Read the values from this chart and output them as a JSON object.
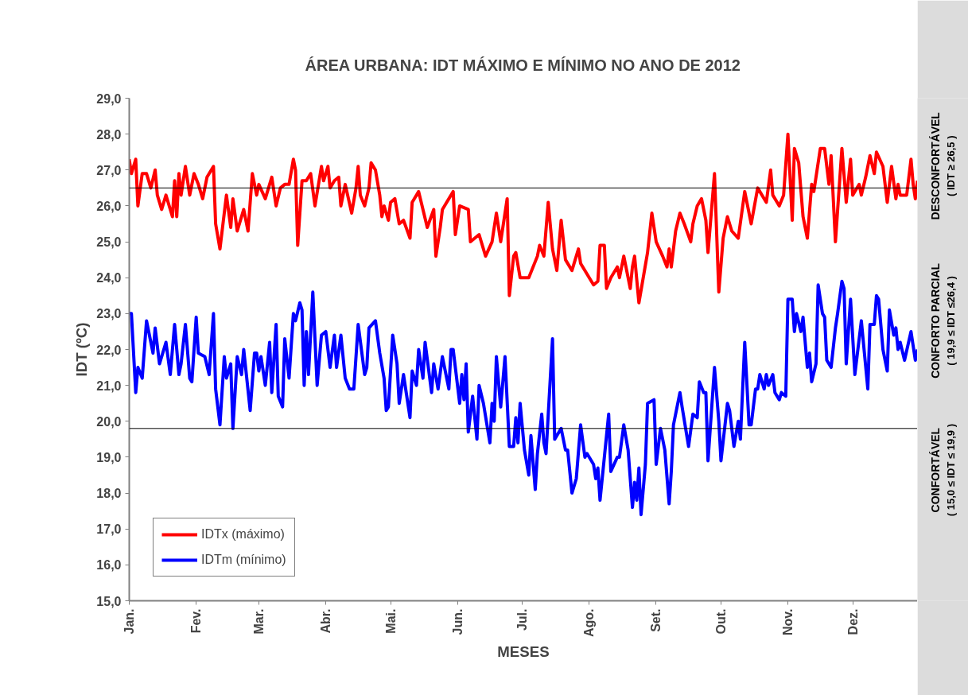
{
  "chart_data": {
    "type": "line",
    "title": "ÁREA URBANA: IDT MÁXIMO E MÍNIMO NO ANO DE 2012",
    "xlabel": "MESES",
    "ylabel": "IDT (ºC)",
    "xlim": [
      "2012-01-01",
      "2012-12-31"
    ],
    "xticks": [
      {
        "value": "2012-01-01",
        "label": "Jan."
      },
      {
        "value": "2012-02-01",
        "label": "Fev."
      },
      {
        "value": "2012-03-01",
        "label": "Mar."
      },
      {
        "value": "2012-04-01",
        "label": "Abr."
      },
      {
        "value": "2012-05-01",
        "label": "Mai."
      },
      {
        "value": "2012-06-01",
        "label": "Jun."
      },
      {
        "value": "2012-07-01",
        "label": "Jul."
      },
      {
        "value": "2012-08-01",
        "label": "Ago."
      },
      {
        "value": "2012-09-01",
        "label": "Set."
      },
      {
        "value": "2012-10-01",
        "label": "Out."
      },
      {
        "value": "2012-11-01",
        "label": "Nov."
      },
      {
        "value": "2012-12-01",
        "label": "Dez."
      }
    ],
    "ylim": [
      15,
      29
    ],
    "yticks": [
      {
        "value": 15,
        "label": "15,0"
      },
      {
        "value": 16,
        "label": "16,0"
      },
      {
        "value": 17,
        "label": "17,0"
      },
      {
        "value": 18,
        "label": "18,0"
      },
      {
        "value": 19,
        "label": "19,0"
      },
      {
        "value": 20,
        "label": "20,0"
      },
      {
        "value": 21,
        "label": "21,0"
      },
      {
        "value": 22,
        "label": "22,0"
      },
      {
        "value": 23,
        "label": "23,0"
      },
      {
        "value": 24,
        "label": "24,0"
      },
      {
        "value": 25,
        "label": "25,0"
      },
      {
        "value": 26,
        "label": "26,0"
      },
      {
        "value": 27,
        "label": "27,0"
      },
      {
        "value": 28,
        "label": "28,0"
      },
      {
        "value": 29,
        "label": "29,0"
      }
    ],
    "grid": false,
    "legend": "bottom left",
    "marker": "none",
    "line_style": "solid",
    "ref_lines": [
      {
        "axis": "y",
        "value": 26.5,
        "color": "#000000"
      },
      {
        "axis": "y",
        "value": 19.8,
        "color": "#000000"
      }
    ],
    "annotations": [
      "DESCONFORTÁVEL\n( IDT ≥ 26,5 )",
      "CONFORTO PARCIAL\n( 19,9 ≤ IDT ≤26,4 )",
      "CONFORTÁVEL\n( 15,0 ≤ IDT ≤ 19,9 )"
    ],
    "series": [
      {
        "name": "IDTx (máximo)",
        "color": "#ff0000",
        "x": [
          "2012-01-01",
          "2012-01-02",
          "2012-01-04",
          "2012-01-05",
          "2012-01-07",
          "2012-01-09",
          "2012-01-11",
          "2012-01-13",
          "2012-01-14",
          "2012-01-16",
          "2012-01-18",
          "2012-01-21",
          "2012-01-22",
          "2012-01-23",
          "2012-01-24",
          "2012-01-25",
          "2012-01-27",
          "2012-01-29",
          "2012-01-31",
          "2012-02-02",
          "2012-02-04",
          "2012-02-06",
          "2012-02-09",
          "2012-02-10",
          "2012-02-12",
          "2012-02-15",
          "2012-02-17",
          "2012-02-18",
          "2012-02-20",
          "2012-02-23",
          "2012-02-25",
          "2012-02-27",
          "2012-02-29",
          "2012-03-01",
          "2012-03-04",
          "2012-03-07",
          "2012-03-09",
          "2012-03-11",
          "2012-03-13",
          "2012-03-15",
          "2012-03-17",
          "2012-03-18",
          "2012-03-19",
          "2012-03-21",
          "2012-03-23",
          "2012-03-25",
          "2012-03-27",
          "2012-03-30",
          "2012-03-31",
          "2012-04-02",
          "2012-04-03",
          "2012-04-05",
          "2012-04-07",
          "2012-04-08",
          "2012-04-10",
          "2012-04-13",
          "2012-04-15",
          "2012-04-16",
          "2012-04-17",
          "2012-04-19",
          "2012-04-21",
          "2012-04-22",
          "2012-04-24",
          "2012-04-26",
          "2012-04-27",
          "2012-04-28",
          "2012-04-30",
          "2012-05-01",
          "2012-05-03",
          "2012-05-05",
          "2012-05-07",
          "2012-05-10",
          "2012-05-11",
          "2012-05-14",
          "2012-05-18",
          "2012-05-21",
          "2012-05-22",
          "2012-05-24",
          "2012-05-25",
          "2012-05-30",
          "2012-05-31",
          "2012-06-02",
          "2012-06-06",
          "2012-06-07",
          "2012-06-11",
          "2012-06-14",
          "2012-06-17",
          "2012-06-19",
          "2012-06-21",
          "2012-06-24",
          "2012-06-25",
          "2012-06-27",
          "2012-06-28",
          "2012-06-30",
          "2012-07-04",
          "2012-07-08",
          "2012-07-09",
          "2012-07-11",
          "2012-07-13",
          "2012-07-15",
          "2012-07-17",
          "2012-07-19",
          "2012-07-21",
          "2012-07-24",
          "2012-07-27",
          "2012-07-28",
          "2012-07-31",
          "2012-08-03",
          "2012-08-05",
          "2012-08-06",
          "2012-08-08",
          "2012-08-09",
          "2012-08-11",
          "2012-08-14",
          "2012-08-15",
          "2012-08-17",
          "2012-08-20",
          "2012-08-21",
          "2012-08-22",
          "2012-08-24",
          "2012-08-28",
          "2012-08-30",
          "2012-09-01",
          "2012-09-04",
          "2012-09-06",
          "2012-09-07",
          "2012-09-08",
          "2012-09-10",
          "2012-09-12",
          "2012-09-14",
          "2012-09-17",
          "2012-09-18",
          "2012-09-20",
          "2012-09-22",
          "2012-09-24",
          "2012-09-25",
          "2012-09-28",
          "2012-09-30",
          "2012-10-02",
          "2012-10-04",
          "2012-10-06",
          "2012-10-09",
          "2012-10-12",
          "2012-10-15",
          "2012-10-18",
          "2012-10-22",
          "2012-10-24",
          "2012-10-25",
          "2012-10-28",
          "2012-10-30",
          "2012-11-01",
          "2012-11-03",
          "2012-11-04",
          "2012-11-06",
          "2012-11-08",
          "2012-11-10",
          "2012-11-12",
          "2012-11-13",
          "2012-11-16",
          "2012-11-18",
          "2012-11-20",
          "2012-11-21",
          "2012-11-23",
          "2012-11-26",
          "2012-11-28",
          "2012-11-30",
          "2012-12-01",
          "2012-12-04",
          "2012-12-05",
          "2012-12-07",
          "2012-12-09",
          "2012-12-11",
          "2012-12-12",
          "2012-12-15",
          "2012-12-17",
          "2012-12-19",
          "2012-12-21",
          "2012-12-22",
          "2012-12-23",
          "2012-12-26",
          "2012-12-28",
          "2012-12-29",
          "2012-12-30",
          "2012-12-31"
        ],
        "values": [
          27.3,
          26.9,
          27.3,
          26.0,
          26.9,
          26.9,
          26.5,
          27.0,
          26.3,
          25.9,
          26.3,
          25.7,
          26.7,
          25.7,
          26.9,
          26.3,
          27.1,
          26.3,
          26.9,
          26.6,
          26.2,
          26.8,
          27.1,
          25.5,
          24.8,
          26.3,
          25.4,
          26.2,
          25.3,
          25.9,
          25.3,
          26.9,
          26.3,
          26.6,
          26.2,
          26.8,
          26.0,
          26.5,
          26.6,
          26.6,
          27.3,
          27.0,
          24.9,
          26.7,
          26.7,
          26.9,
          26.0,
          27.1,
          26.7,
          27.1,
          26.5,
          26.7,
          26.8,
          26.0,
          26.6,
          25.8,
          26.5,
          27.1,
          26.3,
          26.0,
          26.5,
          27.2,
          27.0,
          26.3,
          25.7,
          26.0,
          25.6,
          26.1,
          26.2,
          25.5,
          25.6,
          25.1,
          26.1,
          26.4,
          25.4,
          25.9,
          24.6,
          25.4,
          25.9,
          26.4,
          25.2,
          26.0,
          25.9,
          25.0,
          25.2,
          24.6,
          25.0,
          25.8,
          25.0,
          26.2,
          23.5,
          24.6,
          24.7,
          24.0,
          24.0,
          24.6,
          24.9,
          24.6,
          26.1,
          24.8,
          24.2,
          25.6,
          24.5,
          24.2,
          24.8,
          24.4,
          24.1,
          23.8,
          23.9,
          24.9,
          24.9,
          23.7,
          24.0,
          24.3,
          24.0,
          24.6,
          23.7,
          24.3,
          24.6,
          23.3,
          24.7,
          25.8,
          25.0,
          24.6,
          24.3,
          24.8,
          24.3,
          25.3,
          25.8,
          25.5,
          25.0,
          25.5,
          26.0,
          26.2,
          25.6,
          24.7,
          26.9,
          23.6,
          25.1,
          25.7,
          25.3,
          25.1,
          26.4,
          25.5,
          26.5,
          26.1,
          27.0,
          26.3,
          26.0,
          26.3,
          28.0,
          25.6,
          27.6,
          27.2,
          25.7,
          25.1,
          26.6,
          26.4,
          27.6,
          27.6,
          26.6,
          27.4,
          25.0,
          27.6,
          26.1,
          27.3,
          26.3,
          26.6,
          26.3,
          26.8,
          27.4,
          26.9,
          27.5,
          27.1,
          26.1,
          27.1,
          26.2,
          26.6,
          26.3,
          26.3,
          27.3,
          26.6,
          26.2,
          26.7
        ]
      },
      {
        "name": "IDTm (mínimo)",
        "color": "#0000ff",
        "x": [
          "2012-01-01",
          "2012-01-02",
          "2012-01-04",
          "2012-01-05",
          "2012-01-07",
          "2012-01-08",
          "2012-01-09",
          "2012-01-12",
          "2012-01-13",
          "2012-01-15",
          "2012-01-18",
          "2012-01-20",
          "2012-01-22",
          "2012-01-24",
          "2012-01-25",
          "2012-01-27",
          "2012-01-29",
          "2012-01-30",
          "2012-02-01",
          "2012-02-02",
          "2012-02-05",
          "2012-02-07",
          "2012-02-09",
          "2012-02-10",
          "2012-02-12",
          "2012-02-14",
          "2012-02-15",
          "2012-02-17",
          "2012-02-18",
          "2012-02-20",
          "2012-02-22",
          "2012-02-23",
          "2012-02-26",
          "2012-02-28",
          "2012-02-29",
          "2012-03-01",
          "2012-03-02",
          "2012-03-04",
          "2012-03-06",
          "2012-03-07",
          "2012-03-09",
          "2012-03-10",
          "2012-03-12",
          "2012-03-13",
          "2012-03-15",
          "2012-03-17",
          "2012-03-18",
          "2012-03-20",
          "2012-03-21",
          "2012-03-22",
          "2012-03-23",
          "2012-03-24",
          "2012-03-26",
          "2012-03-28",
          "2012-03-30",
          "2012-04-01",
          "2012-04-03",
          "2012-04-05",
          "2012-04-06",
          "2012-04-08",
          "2012-04-10",
          "2012-04-12",
          "2012-04-14",
          "2012-04-16",
          "2012-04-19",
          "2012-04-20",
          "2012-04-21",
          "2012-04-24",
          "2012-04-26",
          "2012-04-28",
          "2012-04-29",
          "2012-04-30",
          "2012-05-02",
          "2012-05-04",
          "2012-05-05",
          "2012-05-07",
          "2012-05-10",
          "2012-05-11",
          "2012-05-13",
          "2012-05-14",
          "2012-05-16",
          "2012-05-17",
          "2012-05-20",
          "2012-05-21",
          "2012-05-23",
          "2012-05-25",
          "2012-05-28",
          "2012-05-29",
          "2012-05-30",
          "2012-06-02",
          "2012-06-03",
          "2012-06-04",
          "2012-06-05",
          "2012-06-06",
          "2012-06-08",
          "2012-06-10",
          "2012-06-11",
          "2012-06-13",
          "2012-06-16",
          "2012-06-17",
          "2012-06-18",
          "2012-06-19",
          "2012-06-21",
          "2012-06-23",
          "2012-06-25",
          "2012-06-27",
          "2012-06-28",
          "2012-06-29",
          "2012-06-30",
          "2012-07-02",
          "2012-07-04",
          "2012-07-05",
          "2012-07-07",
          "2012-07-08",
          "2012-07-10",
          "2012-07-11",
          "2012-07-12",
          "2012-07-15",
          "2012-07-16",
          "2012-07-19",
          "2012-07-21",
          "2012-07-22",
          "2012-07-24",
          "2012-07-26",
          "2012-07-28",
          "2012-07-30",
          "2012-07-31",
          "2012-08-03",
          "2012-08-04",
          "2012-08-05",
          "2012-08-06",
          "2012-08-08",
          "2012-08-10",
          "2012-08-11",
          "2012-08-14",
          "2012-08-15",
          "2012-08-17",
          "2012-08-19",
          "2012-08-21",
          "2012-08-22",
          "2012-08-23",
          "2012-08-24",
          "2012-08-25",
          "2012-08-27",
          "2012-08-28",
          "2012-08-31",
          "2012-09-01",
          "2012-09-03",
          "2012-09-05",
          "2012-09-07",
          "2012-09-08",
          "2012-09-09",
          "2012-09-12",
          "2012-09-13",
          "2012-09-16",
          "2012-09-18",
          "2012-09-20",
          "2012-09-21",
          "2012-09-23",
          "2012-09-24",
          "2012-09-25",
          "2012-09-28",
          "2012-09-30",
          "2012-10-01",
          "2012-10-04",
          "2012-10-05",
          "2012-10-07",
          "2012-10-09",
          "2012-10-10",
          "2012-10-12",
          "2012-10-14",
          "2012-10-15",
          "2012-10-17",
          "2012-10-18",
          "2012-10-19",
          "2012-10-21",
          "2012-10-22",
          "2012-10-23",
          "2012-10-25",
          "2012-10-26",
          "2012-10-28",
          "2012-10-29",
          "2012-10-31",
          "2012-11-01",
          "2012-11-03",
          "2012-11-04",
          "2012-11-05",
          "2012-11-07",
          "2012-11-08",
          "2012-11-10",
          "2012-11-11",
          "2012-11-12",
          "2012-11-14",
          "2012-11-15",
          "2012-11-17",
          "2012-11-18",
          "2012-11-19",
          "2012-11-21",
          "2012-11-23",
          "2012-11-24",
          "2012-11-26",
          "2012-11-27",
          "2012-11-28",
          "2012-11-30",
          "2012-12-02",
          "2012-12-05",
          "2012-12-08",
          "2012-12-09",
          "2012-12-11",
          "2012-12-12",
          "2012-12-13",
          "2012-12-15",
          "2012-12-17",
          "2012-12-18",
          "2012-12-20",
          "2012-12-21",
          "2012-12-22",
          "2012-12-23",
          "2012-12-25",
          "2012-12-28",
          "2012-12-29",
          "2012-12-30",
          "2012-12-31"
        ],
        "values": [
          23.0,
          23.0,
          20.8,
          21.5,
          21.2,
          22.0,
          22.8,
          21.9,
          22.6,
          21.6,
          22.2,
          21.3,
          22.7,
          21.3,
          21.6,
          22.7,
          21.2,
          21.1,
          22.9,
          21.9,
          21.8,
          21.3,
          23.0,
          20.9,
          19.9,
          21.8,
          21.2,
          21.6,
          19.8,
          21.8,
          21.3,
          22.0,
          20.3,
          21.9,
          21.9,
          21.4,
          21.8,
          21.0,
          22.2,
          20.8,
          22.7,
          20.7,
          20.4,
          22.3,
          21.2,
          23.0,
          22.8,
          23.3,
          23.1,
          21.0,
          22.5,
          21.3,
          23.6,
          21.0,
          22.4,
          22.5,
          21.5,
          22.4,
          21.5,
          22.4,
          21.2,
          20.9,
          20.9,
          22.7,
          21.3,
          21.5,
          22.6,
          22.8,
          21.9,
          21.2,
          20.3,
          20.4,
          22.4,
          21.6,
          20.5,
          21.3,
          20.1,
          21.4,
          21.0,
          22.0,
          21.2,
          22.2,
          20.8,
          21.6,
          20.9,
          21.8,
          20.9,
          22.0,
          22.0,
          20.5,
          21.3,
          20.6,
          21.6,
          19.7,
          20.7,
          19.5,
          21.0,
          20.5,
          19.4,
          20.5,
          20.0,
          21.8,
          20.4,
          21.8,
          19.3,
          19.3,
          20.1,
          19.4,
          20.5,
          19.2,
          18.5,
          19.6,
          18.1,
          19.1,
          20.2,
          19.4,
          19.1,
          22.3,
          19.5,
          19.8,
          19.2,
          19.2,
          18.0,
          18.4,
          19.9,
          19.0,
          19.1,
          18.8,
          18.4,
          18.7,
          17.8,
          19.0,
          20.2,
          18.6,
          19.0,
          19.0,
          19.9,
          19.2,
          17.6,
          18.3,
          17.8,
          18.7,
          17.4,
          18.8,
          20.5,
          20.6,
          18.8,
          19.8,
          19.2,
          17.7,
          18.6,
          19.9,
          20.8,
          20.4,
          19.3,
          20.2,
          20.1,
          21.1,
          20.8,
          20.8,
          18.9,
          21.5,
          20.0,
          18.9,
          20.5,
          20.3,
          19.3,
          20.0,
          19.5,
          22.2,
          19.9,
          19.9,
          20.9,
          20.9,
          21.3,
          20.9,
          21.3,
          21.0,
          21.3,
          20.8,
          20.6,
          20.8,
          20.7,
          23.4,
          23.4,
          22.5,
          23.0,
          22.5,
          22.9,
          21.5,
          21.9,
          21.1,
          21.6,
          23.8,
          23.0,
          22.9,
          21.7,
          21.5,
          22.6,
          23.0,
          23.9,
          23.7,
          21.6,
          23.4,
          21.3,
          22.8,
          20.9,
          22.7,
          22.7,
          23.5,
          23.4,
          22.0,
          21.4,
          23.1,
          22.4,
          22.6,
          22.0,
          22.2,
          21.7,
          22.5,
          22.1,
          21.7,
          22.0
        ]
      }
    ]
  }
}
